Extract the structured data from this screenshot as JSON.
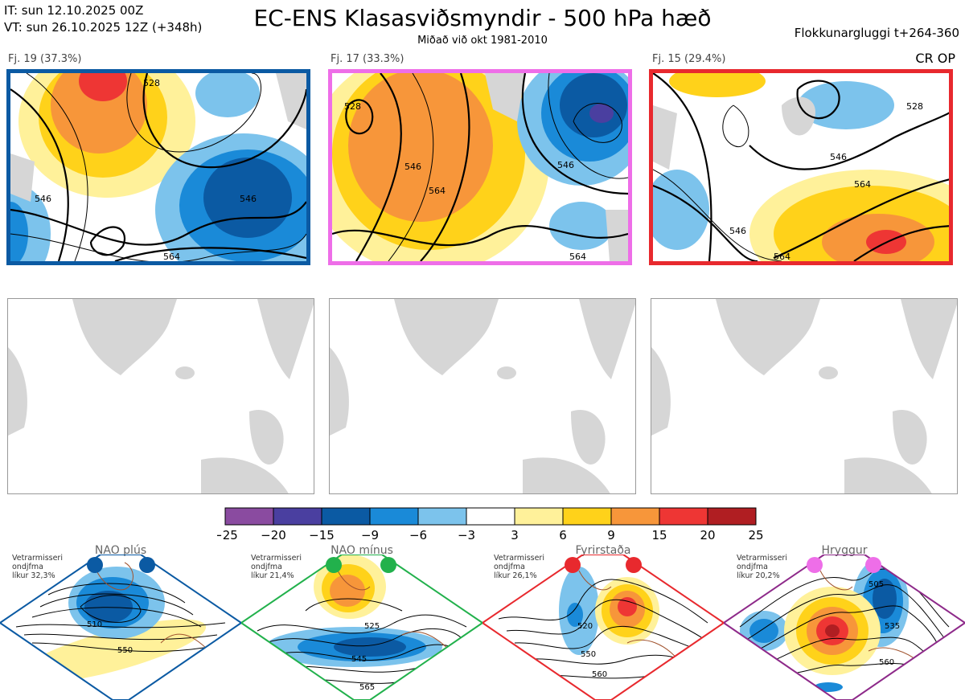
{
  "header": {
    "init_time": "IT: sun 12.10.2025 00Z",
    "valid_time": "VT: sun 26.10.2025 12Z  (+348h)",
    "title": "EC-ENS Klasasviðsmyndir - 500 hPa hæð",
    "subtitle": "Miðað við okt 1981-2010",
    "window": "Flokkunargluggi t+264-360"
  },
  "clusters": [
    {
      "label": "Fj. 19 (37.3%)",
      "border_color": "#0b5aa3",
      "contours": [
        "528",
        "546",
        "546",
        "564"
      ]
    },
    {
      "label": "Fj. 17 (33.3%)",
      "border_color": "#ee6ee8",
      "contours": [
        "528",
        "546",
        "564",
        "546",
        "564"
      ]
    },
    {
      "label": "Fj. 15 (29.4%)",
      "border_color": "#e8292e",
      "contours": [
        "528",
        "546",
        "564",
        "546",
        "564"
      ],
      "tag": "CR OP"
    }
  ],
  "colorbar": {
    "ticks": [
      "−25",
      "−20",
      "−15",
      "−9",
      "−6",
      "−3",
      "3",
      "6",
      "9",
      "15",
      "20",
      "25"
    ],
    "colors": [
      "#8a4ba0",
      "#4a3fa0",
      "#0b5aa3",
      "#1a8ad8",
      "#7cc3ec",
      "#ffffff",
      "#fff19a",
      "#ffd21a",
      "#f7963a",
      "#ee3634",
      "#b01e22"
    ]
  },
  "regimes": [
    {
      "name": "NAO plús",
      "note": [
        "Vetrarmisseri",
        "ondjfma",
        "líkur 32,3%"
      ],
      "dot_color": "#0b5aa3",
      "border_color": "#0b5aa3",
      "contours": [
        "510",
        "550"
      ]
    },
    {
      "name": "NAO mínus",
      "note": [
        "Vetrarmisseri",
        "ondjfma",
        "líkur 21,4%"
      ],
      "dot_color": "#22b14c",
      "border_color": "#22b14c",
      "contours": [
        "525",
        "545",
        "565"
      ]
    },
    {
      "name": "Fyrirstaða",
      "note": [
        "Vetrarmisseri",
        "ondjfma",
        "líkur 26,1%"
      ],
      "dot_color": "#e8292e",
      "border_color": "#e8292e",
      "contours": [
        "520",
        "550",
        "560"
      ]
    },
    {
      "name": "Hryggur",
      "note": [
        "Vetrarmisseri",
        "ondjfma",
        "líkur 20,2%"
      ],
      "dot_color": "#ee6ee8",
      "border_color": "#8e2a8a",
      "contours": [
        "505",
        "535",
        "560"
      ]
    }
  ]
}
